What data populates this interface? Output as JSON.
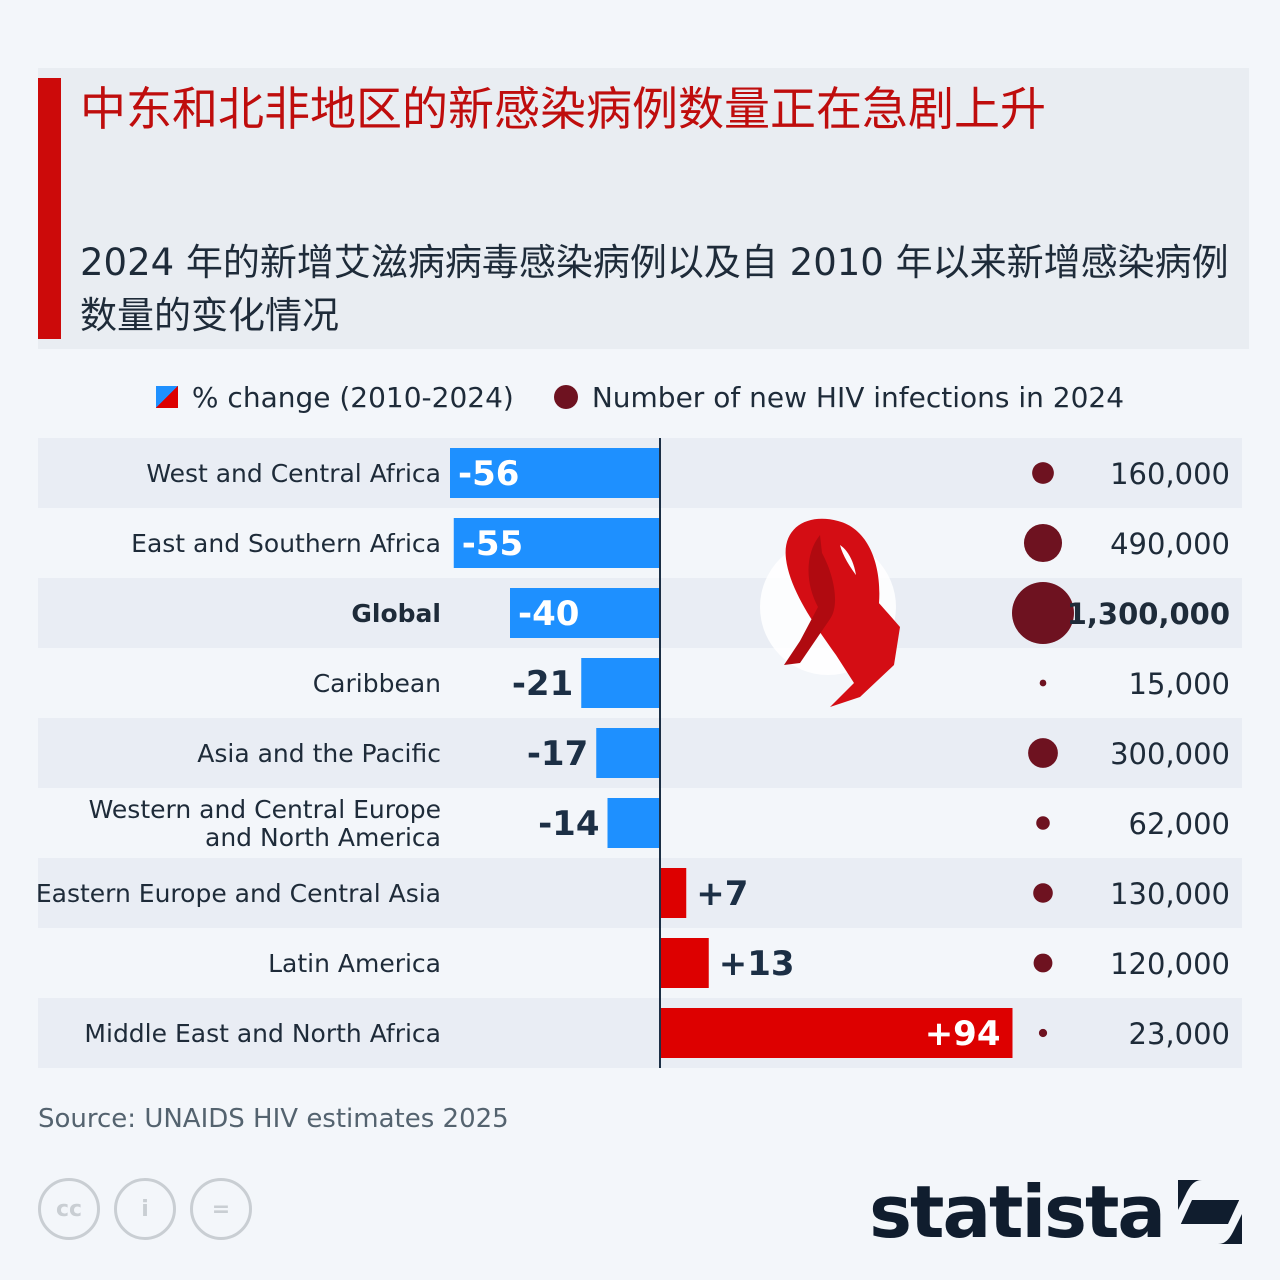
{
  "header": {
    "title": "中东和北非地区的新感染病例数量正在急剧上升",
    "subtitle": "2024 年的新增艾滋病病毒感染病例以及自 2010 年以来新增感染病例数量的变化情况"
  },
  "legend": {
    "change_label": "% change (2010-2024)",
    "count_label": "Number of new HIV infections in 2024"
  },
  "colors": {
    "decrease": "#1e90ff",
    "increase": "#dd0000",
    "dot": "#6e1220",
    "row_stripe": "#e9edf4"
  },
  "chart_data": {
    "type": "bar",
    "orientation": "horizontal",
    "categories": [
      "West and Central Africa",
      "East and Southern Africa",
      "Global",
      "Caribbean",
      "Asia and the Pacific",
      "Western and Central Europe and North America",
      "Eastern Europe and Central Asia",
      "Latin America",
      "Middle East and North Africa"
    ],
    "category_lines": [
      [
        "West and Central Africa"
      ],
      [
        "East and Southern Africa"
      ],
      [
        "Global"
      ],
      [
        "Caribbean"
      ],
      [
        "Asia and the Pacific"
      ],
      [
        "Western and Central Europe",
        "and North America"
      ],
      [
        "Eastern Europe and Central Asia"
      ],
      [
        "Latin America"
      ],
      [
        "Middle East and North Africa"
      ]
    ],
    "highlight": "Global",
    "series": [
      {
        "name": "% change (2010-2024)",
        "values": [
          -56,
          -55,
          -40,
          -21,
          -17,
          -14,
          7,
          13,
          94
        ],
        "labels": [
          "-56",
          "-55",
          "-40",
          "-21",
          "-17",
          "-14",
          "+7",
          "+13",
          "+94"
        ]
      },
      {
        "name": "Number of new HIV infections in 2024",
        "values": [
          160000,
          490000,
          1300000,
          15000,
          300000,
          62000,
          130000,
          120000,
          23000
        ],
        "labels": [
          "160,000",
          "490,000",
          "1,300,000",
          "15,000",
          "300,000",
          "62,000",
          "130,000",
          "120,000",
          "23,000"
        ]
      }
    ],
    "legend_position": "top"
  },
  "footer": {
    "source": "Source: UNAIDS HIV estimates 2025",
    "license_icons": [
      "cc-icon",
      "by-icon",
      "nd-icon"
    ],
    "license_glyphs": [
      "cc",
      "i",
      "="
    ],
    "brand": "statista"
  },
  "decoration": {
    "ribbon": "red-ribbon-icon"
  }
}
